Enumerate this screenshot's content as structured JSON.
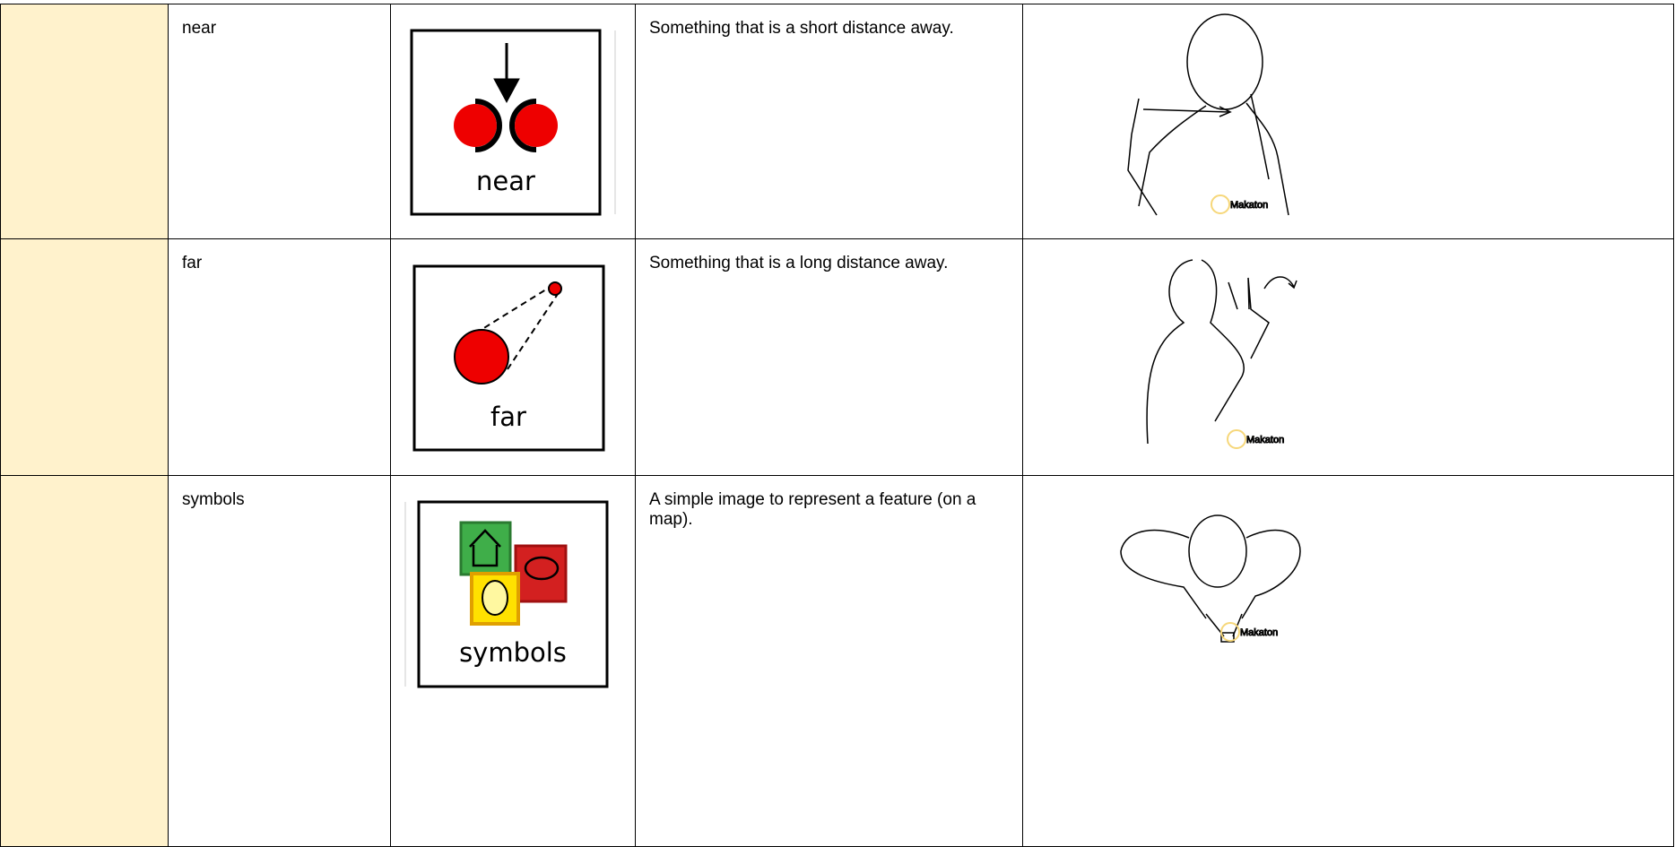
{
  "table": {
    "rows": [
      {
        "word": "near",
        "symbol_label": "near",
        "definition": "Something that is a short distance away.",
        "sign_watermark": "Makaton"
      },
      {
        "word": "far",
        "symbol_label": "far",
        "definition": "Something that is a long distance away.",
        "sign_watermark": "Makaton"
      },
      {
        "word": "symbols",
        "symbol_label": "symbols",
        "definition": "A simple image to represent a feature (on a map).",
        "sign_watermark": "Makaton"
      }
    ]
  }
}
